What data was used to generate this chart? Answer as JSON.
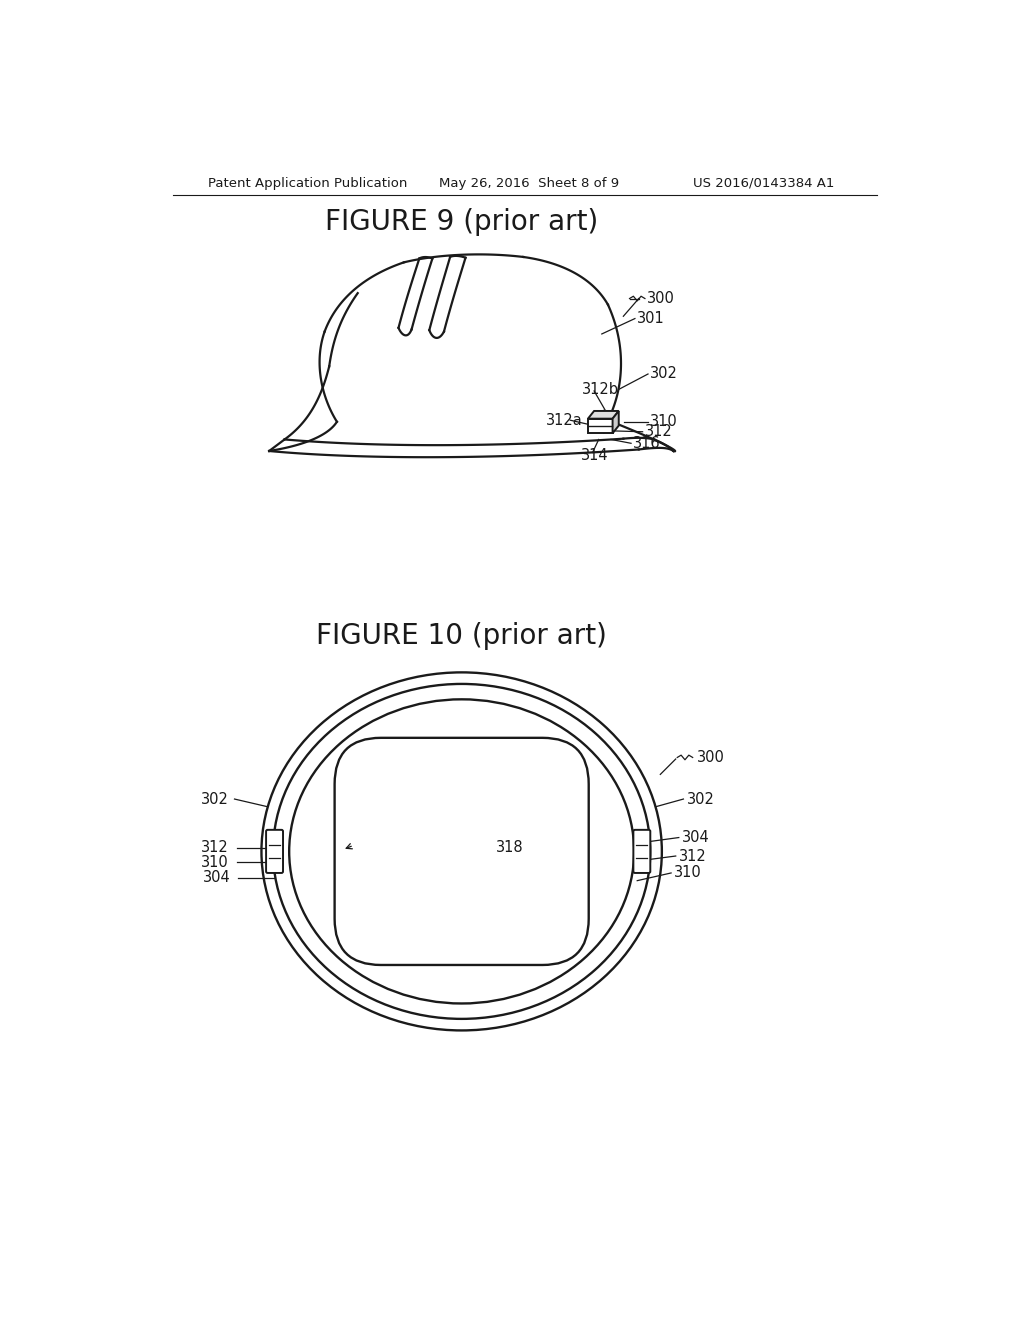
{
  "bg_color": "#ffffff",
  "header_left": "Patent Application Publication",
  "header_mid": "May 26, 2016  Sheet 8 of 9",
  "header_right": "US 2016/0143384 A1",
  "fig9_title": "FIGURE 9 (prior art)",
  "fig10_title": "FIGURE 10 (prior art)",
  "line_color": "#1a1a1a",
  "text_color": "#1a1a1a",
  "label_fontsize": 10.5,
  "title_fontsize": 20
}
